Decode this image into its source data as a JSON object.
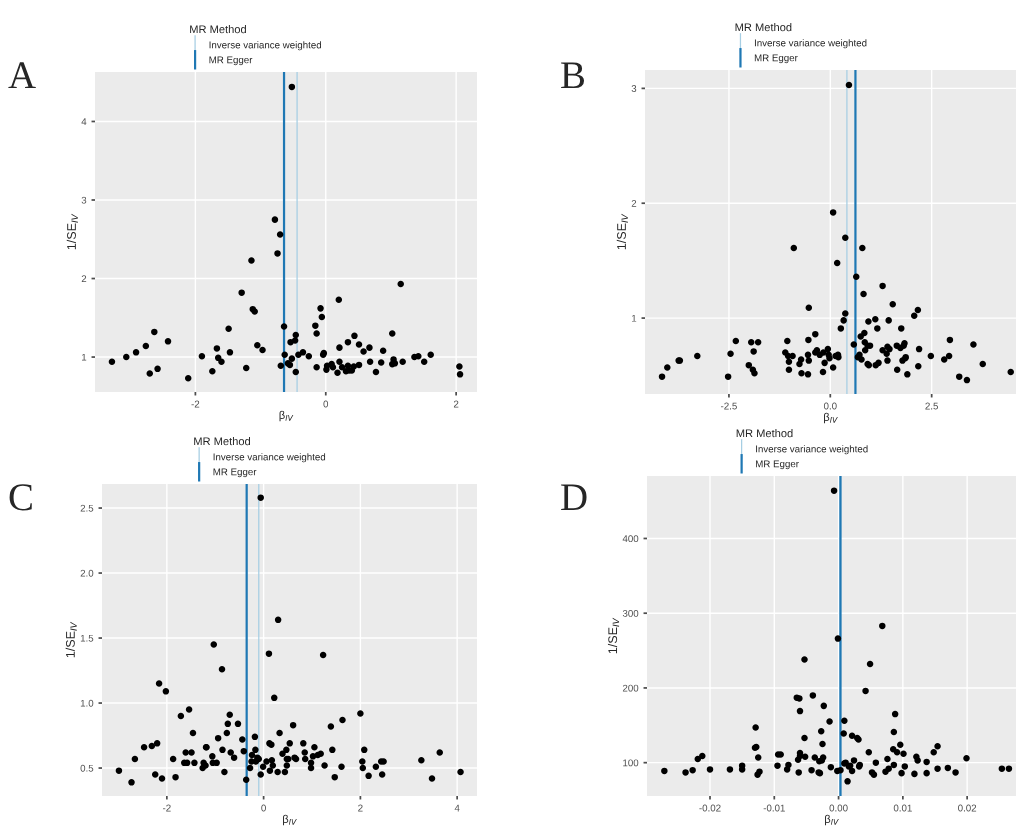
{
  "chart_data": [
    {
      "type": "scatter",
      "title": "A",
      "xlabel": "β$_{IV}$",
      "ylabel": "1/SE$_{IV}$",
      "legend_title": "MR Method",
      "legend": "top",
      "grid": true,
      "marker": "circle",
      "xlim": [
        -3.54,
        2.32
      ],
      "ylim": [
        0.555,
        4.63
      ],
      "xticks": [
        -2,
        0,
        2
      ],
      "yticks": [
        1,
        2,
        3,
        4
      ],
      "ref_lines": [
        {
          "axis": "x",
          "value": -0.44,
          "label": "Inverse variance weighted",
          "color": "#a6cee3"
        },
        {
          "axis": "x",
          "value": -0.64,
          "label": "MR Egger",
          "color": "#1f78b4"
        }
      ],
      "series": [
        {
          "color": "#000000",
          "x": [
            -3.28,
            -3.06,
            -2.91,
            -2.76,
            -2.7,
            -2.63,
            -2.58,
            -2.42,
            -2.11,
            -1.9,
            -1.74,
            -1.67,
            -1.65,
            -1.6,
            -1.49,
            -1.47,
            -1.29,
            -1.22,
            -1.14,
            -1.12,
            -1.09,
            -1.05,
            -0.97,
            -0.78,
            -0.74,
            -0.7,
            -0.69,
            -0.64,
            -0.63,
            -0.58,
            -0.55,
            -0.54,
            -0.52,
            -0.52,
            -0.47,
            -0.46,
            -0.46,
            -0.42,
            -0.35,
            -0.26,
            -0.16,
            -0.14,
            -0.14,
            -0.08,
            -0.06,
            -0.04,
            -0.03,
            0.01,
            0.02,
            0.09,
            0.11,
            0.18,
            0.2,
            0.21,
            0.21,
            0.25,
            0.31,
            0.34,
            0.34,
            0.36,
            0.4,
            0.43,
            0.44,
            0.51,
            0.51,
            0.58,
            0.67,
            0.68,
            0.77,
            0.85,
            0.88,
            1.02,
            1.02,
            1.04,
            1.06,
            1.15,
            1.18,
            1.36,
            1.42,
            1.51,
            1.61,
            2.05,
            2.06
          ],
          "values": [
            0.94,
            1.0,
            1.06,
            1.14,
            0.79,
            1.32,
            0.85,
            1.2,
            0.73,
            1.01,
            0.82,
            1.11,
            0.99,
            0.94,
            1.36,
            1.06,
            1.82,
            0.86,
            2.23,
            1.61,
            1.58,
            1.15,
            1.09,
            2.75,
            2.32,
            2.56,
            0.89,
            1.39,
            1.03,
            0.92,
            0.9,
            1.19,
            4.44,
            0.98,
            1.21,
            1.28,
            0.81,
            1.03,
            1.06,
            1.01,
            1.4,
            0.87,
            1.3,
            1.62,
            1.51,
            1.03,
            1.05,
            0.84,
            0.89,
            0.91,
            0.87,
            0.8,
            1.73,
            1.12,
            0.94,
            0.87,
            0.82,
            0.89,
            1.19,
            0.83,
            0.83,
            0.88,
            1.27,
            1.16,
            0.9,
            1.07,
            1.12,
            0.94,
            0.81,
            0.93,
            1.08,
            1.3,
            0.91,
            0.97,
            0.92,
            1.93,
            0.94,
            1.0,
            1.01,
            0.94,
            1.03,
            0.88,
            0.78
          ]
        }
      ]
    },
    {
      "type": "scatter",
      "title": "B",
      "xlabel": "β$_{IV}$",
      "ylabel": "1/SE$_{IV}$",
      "legend_title": "MR Method",
      "legend": "top",
      "grid": true,
      "marker": "circle",
      "xlim": [
        -4.57,
        4.58
      ],
      "ylim": [
        0.339,
        3.16
      ],
      "xticks": [
        -2.5,
        {
          "value": 0,
          "label": "0.0"
        },
        2.5
      ],
      "yticks": [
        1,
        2,
        3
      ],
      "ref_lines": [
        {
          "axis": "x",
          "value": 0.41,
          "label": "Inverse variance weighted",
          "color": "#a6cee3"
        },
        {
          "axis": "x",
          "value": 0.62,
          "label": "MR Egger",
          "color": "#1f78b4"
        }
      ],
      "series": [
        {
          "color": "#000000",
          "x": [
            -4.15,
            -4.02,
            -3.74,
            -3.71,
            -3.28,
            -2.52,
            -2.46,
            -2.33,
            -2.01,
            -1.95,
            -1.91,
            -1.89,
            -1.87,
            -1.78,
            -1.11,
            -1.06,
            -1.04,
            -1.02,
            -1.02,
            -0.93,
            -0.9,
            -0.76,
            -0.72,
            -0.71,
            -0.55,
            -0.54,
            -0.53,
            -0.53,
            -0.55,
            -0.37,
            -0.37,
            -0.33,
            -0.26,
            -0.17,
            -0.18,
            -0.14,
            -0.06,
            -0.04,
            -0.02,
            0.07,
            0.07,
            0.13,
            0.17,
            0.19,
            0.2,
            0.26,
            0.33,
            0.37,
            0.37,
            0.46,
            0.58,
            0.64,
            0.68,
            0.72,
            0.75,
            0.77,
            0.79,
            0.82,
            0.84,
            0.85,
            0.86,
            0.92,
            0.92,
            0.94,
            0.95,
            0.98,
            1.11,
            1.12,
            1.16,
            1.19,
            1.29,
            1.29,
            1.39,
            1.41,
            1.41,
            1.44,
            1.46,
            1.54,
            1.64,
            1.65,
            1.73,
            1.75,
            1.78,
            1.81,
            1.83,
            1.85,
            1.86,
            1.9,
            2.07,
            2.16,
            2.17,
            2.19,
            2.48,
            2.81,
            2.93,
            2.95,
            3.18,
            3.37,
            3.53,
            3.76,
            4.45
          ],
          "values": [
            0.49,
            0.57,
            0.63,
            0.63,
            0.67,
            0.49,
            0.69,
            0.8,
            0.59,
            0.79,
            0.55,
            0.71,
            0.52,
            0.79,
            0.7,
            0.8,
            0.67,
            0.62,
            0.55,
            0.67,
            1.61,
            0.6,
            0.64,
            0.52,
            0.68,
            0.81,
            1.09,
            0.63,
            0.51,
            0.7,
            0.86,
            0.72,
            0.68,
            0.7,
            0.53,
            0.61,
            0.73,
            0.68,
            0.65,
            1.92,
            0.57,
            0.67,
            1.48,
            0.68,
            0.66,
            0.91,
            0.98,
            1.7,
            1.04,
            3.03,
            0.77,
            1.36,
            0.66,
            0.68,
            0.84,
            0.64,
            1.61,
            1.21,
            0.87,
            0.79,
            0.72,
            0.76,
            0.6,
            0.97,
            0.59,
            0.76,
            0.99,
            0.59,
            0.91,
            0.61,
            1.28,
            0.72,
            0.69,
            0.75,
            0.63,
            0.98,
            0.73,
            1.12,
            0.76,
            0.55,
            0.74,
            0.91,
            0.63,
            0.76,
            0.78,
            0.65,
            0.66,
            0.51,
            1.02,
            1.07,
            0.58,
            0.73,
            0.67,
            0.64,
            0.67,
            0.81,
            0.49,
            0.46,
            0.77,
            0.6,
            0.53
          ]
        }
      ]
    },
    {
      "type": "scatter",
      "title": "C",
      "xlabel": "β$_{IV}$",
      "ylabel": "1/SE$_{IV}$",
      "legend_title": "MR Method",
      "legend": "top",
      "grid": true,
      "marker": "circle",
      "xlim": [
        -3.34,
        4.41
      ],
      "ylim": [
        0.285,
        2.685
      ],
      "xticks": [
        -2,
        0,
        2,
        4
      ],
      "yticks": [
        0.5,
        {
          "value": 1,
          "label": "1.0"
        },
        1.5,
        {
          "value": 2,
          "label": "2.0"
        },
        2.5
      ],
      "ref_lines": [
        {
          "axis": "x",
          "value": -0.1,
          "label": "Inverse variance weighted",
          "color": "#a6cee3"
        },
        {
          "axis": "x",
          "value": -0.35,
          "label": "MR Egger",
          "color": "#1f78b4"
        }
      ],
      "series": [
        {
          "color": "#000000",
          "x": [
            -2.99,
            -2.73,
            -2.66,
            -2.47,
            -2.31,
            -2.24,
            -2.2,
            -2.16,
            -2.1,
            -2.02,
            -1.87,
            -1.82,
            -1.71,
            -1.64,
            -1.61,
            -1.58,
            -1.54,
            -1.49,
            -1.46,
            -1.43,
            -1.26,
            -1.24,
            -1.19,
            -1.18,
            -1.2,
            -1.06,
            -1.05,
            -1.03,
            -0.97,
            -0.94,
            -0.86,
            -0.85,
            -0.81,
            -0.76,
            -0.74,
            -0.7,
            -0.68,
            -0.61,
            -0.53,
            -0.44,
            -0.41,
            -0.36,
            -0.28,
            -0.25,
            -0.24,
            -0.18,
            -0.17,
            -0.16,
            -0.13,
            -0.1,
            -0.06,
            -0.06,
            -0.01,
            0.06,
            0.11,
            0.12,
            0.13,
            0.16,
            0.17,
            0.19,
            0.22,
            0.29,
            0.3,
            0.33,
            0.39,
            0.44,
            0.47,
            0.48,
            0.48,
            0.51,
            0.54,
            0.61,
            0.64,
            0.67,
            0.82,
            0.85,
            0.86,
            0.98,
            0.98,
            1.02,
            1.05,
            1.12,
            1.18,
            1.23,
            1.26,
            1.39,
            1.42,
            1.47,
            1.61,
            1.63,
            2.0,
            2.04,
            2.05,
            2.08,
            2.17,
            2.32,
            2.43,
            2.48,
            2.45,
            3.26,
            3.48,
            3.64,
            4.07
          ],
          "values": [
            0.48,
            0.39,
            0.57,
            0.66,
            0.67,
            0.45,
            0.69,
            1.15,
            0.42,
            1.09,
            0.57,
            0.43,
            0.9,
            0.54,
            0.62,
            0.54,
            0.95,
            0.62,
            0.77,
            0.54,
            0.5,
            0.54,
            0.66,
            0.66,
            0.52,
            0.59,
            0.54,
            1.45,
            0.54,
            0.73,
            1.26,
            0.64,
            0.47,
            0.77,
            0.84,
            0.91,
            0.62,
            0.58,
            0.84,
            0.72,
            0.63,
            0.41,
            0.5,
            0.55,
            0.6,
            0.74,
            0.64,
            0.55,
            0.58,
            0.57,
            2.58,
            0.45,
            0.51,
            0.55,
            1.38,
            0.69,
            0.48,
            0.68,
            0.56,
            0.52,
            1.04,
            0.47,
            1.64,
            0.77,
            0.61,
            0.47,
            0.64,
            0.52,
            0.57,
            0.57,
            0.69,
            0.83,
            0.58,
            0.57,
            0.69,
            0.62,
            0.57,
            0.5,
            0.54,
            0.59,
            0.66,
            0.6,
            0.61,
            1.37,
            0.52,
            0.82,
            0.64,
            0.43,
            0.51,
            0.87,
            0.92,
            0.55,
            0.5,
            0.64,
            0.44,
            0.51,
            0.55,
            0.55,
            0.45,
            0.56,
            0.42,
            0.62,
            0.47
          ]
        }
      ]
    },
    {
      "type": "scatter",
      "title": "D",
      "xlabel": "β$_{IV}$",
      "ylabel": "1/SE$_{IV}$",
      "legend_title": "MR Method",
      "legend": "top",
      "grid": true,
      "marker": "circle",
      "xlim": [
        -0.0298,
        0.0276
      ],
      "ylim": [
        55.4,
        483.6
      ],
      "xticks": [
        {
          "value": -0.02,
          "label": "-0.02"
        },
        {
          "value": -0.01,
          "label": "-0.01"
        },
        {
          "value": 0,
          "label": "0.00"
        },
        {
          "value": 0.01,
          "label": "0.01"
        },
        {
          "value": 0.02,
          "label": "0.02"
        }
      ],
      "yticks": [
        100,
        200,
        300,
        400
      ],
      "ref_lines": [
        {
          "axis": "x",
          "value": 0.0002,
          "label": "Inverse variance weighted",
          "color": "#a6cee3"
        },
        {
          "axis": "x",
          "value": 0.0003,
          "label": "MR Egger",
          "color": "#1f78b4"
        }
      ],
      "series": [
        {
          "color": "#000000",
          "x": [
            -0.0271,
            -0.0238,
            -0.0227,
            -0.0219,
            -0.0212,
            -0.02,
            -0.0169,
            -0.015,
            -0.015,
            -0.0129,
            -0.013,
            -0.0128,
            -0.0126,
            -0.0125,
            -0.0123,
            -0.0095,
            -0.0094,
            -0.009,
            -0.008,
            -0.0078,
            -0.0065,
            -0.0063,
            -0.0062,
            -0.0061,
            -0.006,
            -0.006,
            -0.006,
            -0.0053,
            -0.0053,
            -0.0052,
            -0.0042,
            -0.004,
            -0.0037,
            -0.0031,
            -0.003,
            -0.0029,
            -0.0027,
            -0.0026,
            -0.0025,
            -0.0024,
            -0.0023,
            -0.0014,
            -0.0012,
            -0.0007,
            -0.0002,
            -0.0001,
            0.0003,
            0.0009,
            0.0009,
            0.0008,
            0.0011,
            0.0014,
            0.0016,
            0.0018,
            0.0021,
            0.0021,
            0.0024,
            0.0029,
            0.0031,
            0.0032,
            0.0033,
            0.0042,
            0.0047,
            0.0049,
            0.0052,
            0.0055,
            0.0058,
            0.0068,
            0.0073,
            0.0076,
            0.0078,
            0.0086,
            0.0085,
            0.0086,
            0.0088,
            0.0091,
            0.0096,
            0.0098,
            0.0101,
            0.0103,
            0.0118,
            0.0121,
            0.0123,
            0.0137,
            0.0137,
            0.0148,
            0.0154,
            0.0154,
            0.017,
            0.0182,
            0.0199,
            0.0254,
            0.0265
          ],
          "values": [
            89,
            87,
            90,
            105,
            109,
            91,
            91,
            91,
            96,
            147,
            120,
            121,
            84,
            107,
            88,
            96,
            111,
            111,
            91,
            97,
            187,
            104,
            87,
            186,
            113,
            169,
            109,
            238,
            133,
            108,
            90,
            190,
            107,
            87,
            102,
            86,
            142,
            103,
            125,
            107,
            176,
            155,
            94,
            464,
            89,
            266,
            90,
            99,
            156,
            139,
            100,
            75,
            95,
            96,
            136,
            89,
            103,
            133,
            131,
            95,
            97,
            196,
            114,
            232,
            87,
            84,
            100,
            283,
            88,
            105,
            92,
            97,
            118,
            141,
            165,
            114,
            124,
            86,
            112,
            95,
            85,
            108,
            103,
            101,
            86,
            114,
            122,
            92,
            93,
            87,
            106,
            92,
            92
          ]
        }
      ]
    }
  ]
}
